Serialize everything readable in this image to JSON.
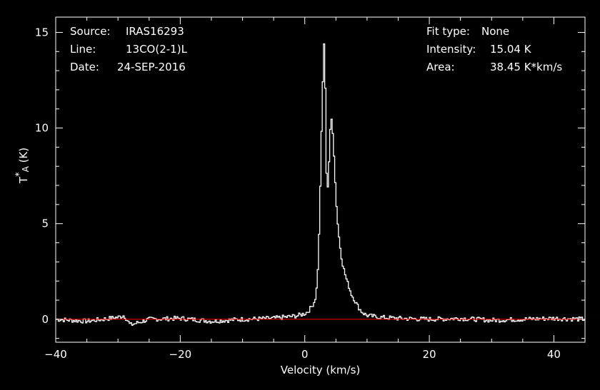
{
  "header_left": {
    "source_label": "Source:",
    "source_value": "IRAS16293",
    "line_label": "Line:",
    "line_value": "13CO(2-1)L",
    "date_label": "Date:",
    "date_value": "24-SEP-2016"
  },
  "header_right": {
    "fit_label": "Fit type:",
    "fit_value": "None",
    "intensity_label": "Intensity:",
    "intensity_value": "15.04 K",
    "area_label": "Area:",
    "area_value": "38.45 K*km/s"
  },
  "chart_data": {
    "type": "line",
    "xlabel": "Velocity (km/s)",
    "ylabel": "T*A (K)",
    "xlim": [
      -40,
      45
    ],
    "ylim": [
      -1.2,
      15.8
    ],
    "x_ticks": [
      -40,
      -20,
      0,
      20,
      40
    ],
    "x_tick_labels": [
      "−40",
      "−20",
      "0",
      "20",
      "40"
    ],
    "y_ticks": [
      0,
      5,
      10,
      15
    ],
    "y_tick_labels": [
      "0",
      "5",
      "10",
      "15"
    ],
    "grid": false,
    "colors": {
      "spectrum": "#ffffff",
      "baseline": "#ff0000",
      "axes": "#ffffff",
      "background": "#000000"
    },
    "series": [
      {
        "x": [
          -40,
          -35,
          -30,
          -29,
          -28,
          -25,
          -20,
          -15,
          -10,
          -5,
          -2,
          -1,
          0,
          0.5,
          1,
          1.5,
          1.8,
          2.0,
          2.2,
          2.4,
          2.6,
          2.8,
          3.0,
          3.2,
          3.4,
          3.6,
          3.8,
          4.0,
          4.2,
          4.4,
          4.6,
          4.8,
          5.0,
          5.2,
          5.4,
          5.6,
          5.8,
          6.0,
          6.3,
          6.6,
          7.0,
          7.5,
          8.0,
          8.5,
          9.0,
          9.5,
          10,
          12,
          15,
          20,
          25,
          30,
          35,
          40,
          45
        ],
        "y": [
          0.0,
          -0.1,
          0.1,
          0.2,
          -0.3,
          0.0,
          0.05,
          -0.1,
          0.0,
          0.05,
          0.15,
          0.2,
          0.3,
          0.4,
          0.6,
          0.9,
          1.2,
          2.0,
          3.3,
          5.5,
          8.5,
          11.0,
          13.8,
          15.04,
          9.0,
          6.4,
          7.5,
          9.0,
          10.7,
          10.2,
          9.4,
          7.8,
          6.5,
          5.4,
          4.6,
          4.0,
          3.5,
          3.0,
          2.6,
          2.2,
          1.8,
          1.3,
          1.0,
          0.7,
          0.45,
          0.3,
          0.2,
          0.1,
          0.05,
          0.0,
          0.05,
          -0.05,
          0.0,
          0.05,
          0.0
        ]
      }
    ]
  }
}
